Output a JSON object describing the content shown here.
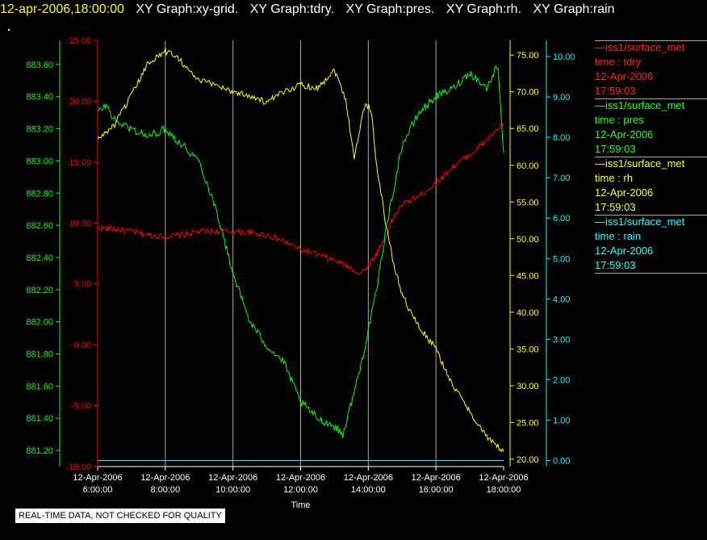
{
  "header": {
    "timestamp": "12-apr-2006,18:00:00",
    "graphs": [
      "XY Graph:xy-grid.",
      "XY Graph:tdry.",
      "XY Graph:pres.",
      "XY Graph:rh.",
      "XY Graph:rain"
    ]
  },
  "colors": {
    "tdry": "#ff0000",
    "pres": "#00ff00",
    "rh": "#ffff00",
    "rain": "#00ffff",
    "grid": "#aaaaaa"
  },
  "legend": [
    {
      "line1": "—iss1/surface_met",
      "line2": "time : tdry",
      "line3": "12-Apr-2006",
      "line4": "17:59:03",
      "color": "#ff2222"
    },
    {
      "line1": "—iss1/surface_met",
      "line2": "time : pres",
      "line3": "12-Apr-2006",
      "line4": "17:59:03",
      "color": "#22ff22"
    },
    {
      "line1": "—iss1/surface_met",
      "line2": "time : rh",
      "line3": "12-Apr-2006",
      "line4": "17:59:03",
      "color": "#ffff22"
    },
    {
      "line1": "—iss1/surface_met",
      "line2": "time : rain",
      "line3": "12-Apr-2006",
      "line4": "17:59:03",
      "color": "#22ffff"
    }
  ],
  "note": "REAL-TIME DATA, NOT CHECKED FOR QUALITY",
  "chart_data": {
    "type": "line",
    "xlabel": "Time",
    "x_ticks": [
      {
        "date": "12-Apr-2006",
        "time": "6:00:00"
      },
      {
        "date": "12-Apr-2006",
        "time": "8:00:00"
      },
      {
        "date": "12-Apr-2006",
        "time": "10:00:00"
      },
      {
        "date": "12-Apr-2006",
        "time": "12:00:00"
      },
      {
        "date": "12-Apr-2006",
        "time": "14:00:00"
      },
      {
        "date": "12-Apr-2006",
        "time": "16:00:00"
      },
      {
        "date": "12-Apr-2006",
        "time": "18:00:00"
      }
    ],
    "xlim": [
      "06:00",
      "18:00"
    ],
    "grid": true,
    "axes": {
      "pres": {
        "ylim": [
          881.1,
          883.75
        ],
        "ticks": [
          "881.20",
          "881.40",
          "881.60",
          "881.80",
          "882.00",
          "882.20",
          "882.40",
          "882.60",
          "882.80",
          "883.00",
          "883.20",
          "883.40",
          "883.60"
        ]
      },
      "tdry": {
        "ylim": [
          -10,
          25
        ],
        "ticks": [
          "-10.00",
          "-5.00",
          "0.00",
          "5.00",
          "10.00",
          "15.00",
          "20.00",
          "25.00"
        ]
      },
      "rh": {
        "ylim": [
          19.0,
          77.0
        ],
        "ticks": [
          "20.00",
          "25.00",
          "30.00",
          "35.00",
          "40.00",
          "45.00",
          "50.00",
          "55.00",
          "60.00",
          "65.00",
          "70.00",
          "75.00"
        ]
      },
      "rain": {
        "ylim": [
          -0.15,
          10.4
        ],
        "ticks": [
          "0.00",
          "1.00",
          "2.00",
          "3.00",
          "4.00",
          "5.00",
          "6.00",
          "7.00",
          "8.00",
          "9.00",
          "10.00"
        ]
      }
    },
    "series": [
      {
        "name": "tdry",
        "axis": "tdry",
        "x": [
          "06:00",
          "06:30",
          "07:00",
          "07:30",
          "08:00",
          "08:30",
          "09:00",
          "09:30",
          "10:00",
          "10:30",
          "11:00",
          "11:30",
          "12:00",
          "12:30",
          "13:00",
          "13:30",
          "13:45",
          "14:00",
          "14:15",
          "14:30",
          "14:45",
          "15:00",
          "15:30",
          "16:00",
          "16:30",
          "17:00",
          "17:30",
          "18:00"
        ],
        "y": [
          9.6,
          9.5,
          9.3,
          9.0,
          8.9,
          9.0,
          9.3,
          9.3,
          9.3,
          9.2,
          9.0,
          8.5,
          7.8,
          7.4,
          6.9,
          6.3,
          5.8,
          6.5,
          7.5,
          8.8,
          10.5,
          11.5,
          12.2,
          13.3,
          14.6,
          15.6,
          16.8,
          18.2
        ]
      },
      {
        "name": "pres",
        "axis": "pres",
        "x": [
          "06:00",
          "06:15",
          "06:30",
          "07:00",
          "07:30",
          "08:00",
          "08:30",
          "09:00",
          "09:30",
          "09:45",
          "10:00",
          "10:30",
          "11:00",
          "11:30",
          "12:00",
          "12:30",
          "13:00",
          "13:15",
          "13:30",
          "13:45",
          "14:00",
          "14:15",
          "14:30",
          "15:00",
          "15:30",
          "16:00",
          "16:30",
          "17:00",
          "17:30",
          "17:50",
          "18:00"
        ],
        "y": [
          883.3,
          883.35,
          883.25,
          883.2,
          883.15,
          883.2,
          883.1,
          883.0,
          882.7,
          882.5,
          882.3,
          882.0,
          881.85,
          881.75,
          881.5,
          881.4,
          881.35,
          881.3,
          881.5,
          881.7,
          881.95,
          882.2,
          882.55,
          883.1,
          883.3,
          883.4,
          883.45,
          883.55,
          883.45,
          883.6,
          883.05
        ]
      },
      {
        "name": "rh",
        "axis": "rh",
        "x": [
          "06:00",
          "06:30",
          "07:00",
          "07:30",
          "08:00",
          "08:20",
          "08:40",
          "09:00",
          "09:30",
          "10:00",
          "10:30",
          "11:00",
          "11:30",
          "12:00",
          "12:30",
          "13:00",
          "13:20",
          "13:35",
          "13:45",
          "13:55",
          "14:05",
          "14:15",
          "14:30",
          "14:45",
          "15:00",
          "15:15",
          "15:30",
          "16:00",
          "16:30",
          "17:00",
          "17:30",
          "18:00"
        ],
        "y": [
          63.5,
          65.5,
          69.5,
          74.0,
          75.5,
          75.0,
          73.0,
          71.5,
          71.0,
          70.0,
          69.5,
          68.5,
          70.0,
          71.0,
          70.5,
          73.0,
          69.0,
          61.0,
          65.0,
          68.5,
          67.5,
          60.0,
          52.5,
          46.5,
          42.5,
          40.0,
          38.0,
          35.0,
          30.0,
          26.5,
          23.0,
          21.0
        ]
      },
      {
        "name": "rain",
        "axis": "rain",
        "x": [
          "06:00",
          "18:00"
        ],
        "y": [
          0.0,
          0.0
        ]
      }
    ]
  }
}
